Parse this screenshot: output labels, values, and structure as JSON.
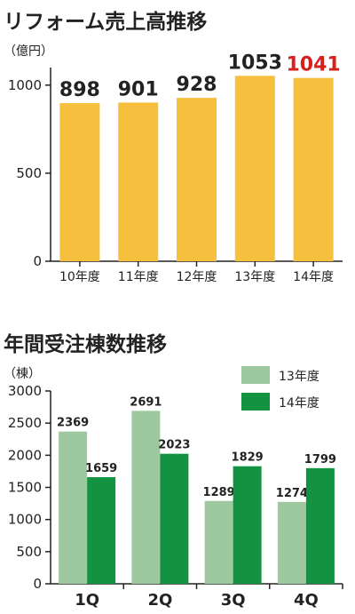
{
  "chart_data": [
    {
      "type": "bar",
      "title": "リフォーム売上高推移",
      "unit_label": "（億円）",
      "categories": [
        "10年度",
        "11年度",
        "12年度",
        "13年度",
        "14年度"
      ],
      "values": [
        898,
        901,
        928,
        1053,
        1041
      ],
      "value_labels": [
        "898",
        "901",
        "928",
        "1053",
        "1041"
      ],
      "ylim": [
        0,
        1100
      ],
      "yticks": [
        0,
        500,
        1000
      ],
      "ytick_labels": [
        "0",
        "500",
        "1000"
      ],
      "bar_color": "#f7bf3e",
      "highlight_label_color": "#d6201c",
      "grid": false
    },
    {
      "type": "bar",
      "title": "年間受注棟数推移",
      "unit_label": "（棟）",
      "categories": [
        "1Q",
        "2Q",
        "3Q",
        "4Q"
      ],
      "series": [
        {
          "name": "13年度",
          "values": [
            2369,
            2691,
            1289,
            1274
          ],
          "value_labels": [
            "2369",
            "2691",
            "1289",
            "1274"
          ],
          "color": "#9ec89e"
        },
        {
          "name": "14年度",
          "values": [
            1659,
            2023,
            1829,
            1799
          ],
          "value_labels": [
            "1659",
            "2023",
            "1829",
            "1799"
          ],
          "color": "#139241"
        }
      ],
      "ylim": [
        0,
        3000
      ],
      "yticks": [
        0,
        500,
        1000,
        1500,
        2000,
        2500,
        3000
      ],
      "ytick_labels": [
        "0",
        "500",
        "1000",
        "1500",
        "2000",
        "2500",
        "3000"
      ],
      "legend_position": "top-right",
      "grid": false
    }
  ]
}
